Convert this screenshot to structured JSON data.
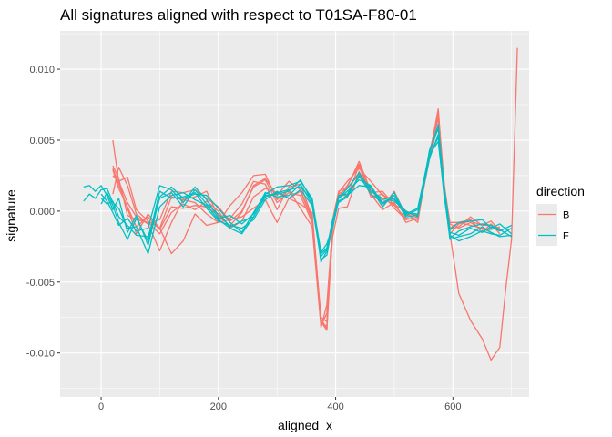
{
  "chart_data": {
    "type": "line",
    "title": "All signatures aligned with respect to T01SA-F80-01",
    "xlabel": "aligned_x",
    "ylabel": "signature",
    "xlim": [
      -70,
      730
    ],
    "ylim": [
      -0.0131,
      0.0127
    ],
    "x_ticks": [
      0,
      200,
      400,
      600
    ],
    "x_tick_labels": [
      "0",
      "200",
      "400",
      "600"
    ],
    "y_ticks": [
      -0.01,
      -0.005,
      0.0,
      0.005,
      0.01
    ],
    "y_tick_labels": [
      "-0.010",
      "-0.005",
      "0.000",
      "0.005",
      "0.010"
    ],
    "legend": {
      "title": "direction",
      "position": "right",
      "entries": [
        {
          "name": "B",
          "color": "#F8766D"
        },
        {
          "name": "F",
          "color": "#00BFC4"
        }
      ]
    },
    "grid": true,
    "panel_background": "#EBEBEB",
    "series": [
      {
        "direction": "B",
        "color": "#F8766D",
        "x": [
          20,
          30,
          45,
          60,
          80,
          100,
          120,
          140,
          160,
          180,
          200,
          220,
          240,
          260,
          280,
          300,
          320,
          340,
          360,
          375,
          385,
          395,
          405,
          420,
          440,
          460,
          480,
          500,
          520,
          540,
          560,
          575,
          585,
          595,
          610,
          630,
          650,
          665,
          680,
          690,
          700,
          710
        ],
        "values": [
          0.0012,
          0.0031,
          0.0018,
          -0.0002,
          -0.0009,
          -0.0028,
          -0.0008,
          0.0008,
          0.0006,
          -0.0002,
          -0.0008,
          -0.0006,
          -0.0004,
          0.0002,
          0.0008,
          -0.0008,
          0.0009,
          0.0014,
          -0.0006,
          -0.0081,
          -0.0072,
          -0.0018,
          0.0002,
          0.0003,
          0.0028,
          0.0012,
          0.0001,
          0.0006,
          -0.0008,
          -0.0005,
          0.0037,
          0.0061,
          0.0012,
          -0.0016,
          -0.0058,
          -0.0077,
          -0.009,
          -0.0105,
          -0.0096,
          -0.0055,
          -0.002,
          0.0115
        ]
      },
      {
        "direction": "B",
        "color": "#F8766D",
        "x": [
          20,
          30,
          45,
          60,
          80,
          100,
          120,
          140,
          160,
          180,
          200,
          220,
          240,
          260,
          280,
          300,
          320,
          340,
          360,
          375,
          385,
          395,
          405,
          420,
          440,
          460,
          480,
          500,
          520,
          540,
          560,
          575,
          585,
          595,
          610,
          630,
          650,
          665,
          680
        ],
        "values": [
          0.005,
          0.0021,
          0.0024,
          0.0001,
          -0.0007,
          -0.0012,
          -0.003,
          -0.0021,
          -0.0002,
          -0.001,
          -0.0008,
          0.0004,
          0.0013,
          0.0025,
          0.0026,
          0.0008,
          0.0015,
          0.0002,
          -0.0011,
          -0.0082,
          -0.0066,
          -0.001,
          0.0011,
          0.0011,
          0.0032,
          0.001,
          0.0012,
          0.0002,
          -0.0006,
          -0.0004,
          0.0039,
          0.0072,
          0.0015,
          -0.0008,
          -0.0008,
          -0.001,
          -0.0012,
          -0.0015,
          -0.0018
        ]
      },
      {
        "direction": "B",
        "color": "#F8766D",
        "x": [
          20,
          30,
          45,
          60,
          80,
          100,
          120,
          140,
          160,
          180,
          200,
          220,
          240,
          260,
          280,
          300,
          320,
          340,
          360,
          375,
          385,
          395,
          405,
          420,
          440,
          460,
          480,
          500,
          520,
          540,
          560,
          575,
          585,
          595,
          610,
          630,
          650,
          665,
          680
        ],
        "values": [
          0.0029,
          0.0016,
          0.0003,
          -0.0011,
          -0.0004,
          -0.0013,
          0.0003,
          0.0002,
          0.0004,
          0.0003,
          -0.0003,
          -0.0005,
          0.0005,
          0.0021,
          0.0019,
          0.0001,
          0.0017,
          0.0019,
          -0.0004,
          -0.0075,
          -0.0078,
          -0.0008,
          0.001,
          0.0018,
          0.0033,
          0.0013,
          0.0014,
          0.0004,
          -0.0005,
          -0.0006,
          0.0038,
          0.0069,
          0.0014,
          -0.0013,
          -0.0011,
          -0.0004,
          -0.001,
          -0.0007,
          -0.0014
        ]
      },
      {
        "direction": "B",
        "color": "#F8766D",
        "x": [
          20,
          30,
          45,
          60,
          80,
          100,
          120,
          140,
          160,
          180,
          200,
          220,
          240,
          260,
          280,
          300,
          320,
          340,
          360,
          375,
          385,
          395,
          405,
          420,
          440,
          460,
          480,
          500,
          520,
          540,
          560,
          575,
          585,
          595,
          610,
          630,
          650,
          665,
          680
        ],
        "values": [
          0.0032,
          0.0023,
          -0.0003,
          -0.0006,
          -0.0008,
          -0.0016,
          -0.0001,
          0.0005,
          0.0001,
          0.0007,
          0.0,
          -0.0012,
          -0.0007,
          0.001,
          0.0016,
          0.0013,
          0.0009,
          0.0005,
          -0.0001,
          -0.0078,
          -0.0084,
          -0.0013,
          0.0012,
          0.0016,
          0.0026,
          0.0016,
          0.0003,
          0.0014,
          -0.0003,
          -0.0002,
          0.0037,
          0.0071,
          0.0019,
          -0.0009,
          -0.0012,
          -0.0008,
          -0.0013,
          -0.0013,
          -0.0011
        ]
      },
      {
        "direction": "B",
        "color": "#F8766D",
        "x": [
          20,
          30,
          45,
          60,
          80,
          100,
          120,
          140,
          160,
          180,
          200,
          220,
          240,
          260,
          280,
          300,
          320,
          340,
          360,
          375,
          385,
          395,
          405,
          420,
          440,
          460,
          480,
          500,
          520,
          540,
          560,
          575,
          585,
          595,
          610,
          630,
          650,
          665,
          680
        ],
        "values": [
          0.003,
          0.0019,
          0.0002,
          -0.0016,
          -0.0002,
          -0.0012,
          0.001,
          0.0008,
          0.001,
          0.0014,
          -0.0004,
          -0.001,
          -0.0001,
          0.0018,
          0.0023,
          0.0011,
          0.0021,
          0.0015,
          -0.0005,
          -0.0079,
          -0.0081,
          -0.0006,
          0.0013,
          0.0021,
          0.003,
          0.0021,
          0.0011,
          0.0008,
          0.0,
          -0.0003,
          0.004,
          0.0067,
          0.0016,
          -0.0012,
          -0.0008,
          -0.0006,
          -0.0015,
          -0.0009,
          -0.0016
        ]
      },
      {
        "direction": "B",
        "color": "#F8766D",
        "x": [
          20,
          30,
          45,
          60,
          80,
          100,
          120,
          140,
          160,
          180,
          200,
          220,
          240,
          260,
          280,
          300,
          320,
          340,
          360,
          375,
          385,
          395,
          405,
          420,
          440,
          460,
          480,
          500,
          520,
          540,
          560,
          575,
          585,
          595,
          610,
          630,
          650,
          665,
          680
        ],
        "values": [
          0.0025,
          0.0021,
          0.0006,
          -0.0004,
          -0.0009,
          -0.0006,
          0.0014,
          0.0013,
          0.0015,
          0.0009,
          0.0003,
          -0.0007,
          0.0,
          0.0017,
          0.0022,
          0.0006,
          0.0013,
          0.0011,
          -0.0008,
          -0.0076,
          -0.0083,
          -0.0006,
          0.0014,
          0.0017,
          0.0035,
          0.0014,
          0.0008,
          0.0005,
          -0.0001,
          -0.0008,
          0.0042,
          0.0065,
          0.002,
          -0.0016,
          -0.0009,
          -0.0007,
          -0.001,
          -0.001,
          -0.0012
        ]
      },
      {
        "direction": "F",
        "color": "#00BFC4",
        "x": [
          -30,
          -20,
          -10,
          0,
          10,
          20,
          30,
          45,
          60,
          80,
          100,
          120,
          140,
          160,
          180,
          200,
          220,
          240,
          260,
          280,
          300,
          320,
          340,
          360,
          375,
          385,
          395,
          405,
          420,
          440,
          460,
          480,
          500,
          520,
          540,
          560,
          575,
          585,
          595,
          610,
          630,
          650,
          665,
          680,
          700
        ],
        "values": [
          0.0017,
          0.0018,
          0.0014,
          0.0018,
          0.0011,
          0.0001,
          0.0009,
          -0.0015,
          -0.0003,
          -0.0024,
          0.001,
          0.0017,
          0.0009,
          0.0012,
          0.0011,
          0.0002,
          -0.0008,
          -0.0015,
          -0.0001,
          0.0012,
          0.0017,
          0.0018,
          0.0021,
          0.0009,
          -0.0036,
          -0.0028,
          -0.0012,
          0.0009,
          0.0014,
          0.0022,
          0.0018,
          0.0005,
          0.0011,
          -0.0002,
          0.0002,
          0.0041,
          0.0061,
          0.0013,
          -0.0019,
          -0.0014,
          -0.0011,
          -0.0009,
          -0.001,
          -0.0013,
          -0.0018
        ]
      },
      {
        "direction": "F",
        "color": "#00BFC4",
        "x": [
          -30,
          -20,
          -10,
          0,
          10,
          20,
          30,
          45,
          60,
          80,
          100,
          120,
          140,
          160,
          180,
          200,
          220,
          240,
          260,
          280,
          300,
          320,
          340,
          360,
          375,
          385,
          395,
          405,
          420,
          440,
          460,
          480,
          500,
          520,
          540,
          560,
          575,
          585,
          595,
          610,
          630,
          650,
          665,
          680,
          700
        ],
        "values": [
          0.0007,
          0.0012,
          0.0009,
          0.0015,
          0.0016,
          0.0006,
          0.0002,
          -0.0012,
          -0.0011,
          -0.003,
          0.0003,
          0.0011,
          0.0013,
          0.0008,
          0.0004,
          -0.0006,
          -0.0012,
          -0.0016,
          -0.0004,
          0.001,
          0.0013,
          0.0015,
          0.0017,
          0.0008,
          -0.0029,
          -0.0023,
          -0.0011,
          0.0007,
          0.0011,
          0.0018,
          0.0017,
          0.0006,
          0.0009,
          -0.0004,
          -0.0003,
          0.0037,
          0.0054,
          0.0013,
          -0.0017,
          -0.0021,
          -0.0018,
          -0.0014,
          -0.0016,
          -0.0017,
          -0.0012
        ]
      },
      {
        "direction": "F",
        "color": "#00BFC4",
        "x": [
          0,
          10,
          20,
          30,
          45,
          60,
          80,
          100,
          120,
          140,
          160,
          180,
          200,
          220,
          240,
          260,
          280,
          300,
          320,
          340,
          360,
          375,
          385,
          395,
          405,
          420,
          440,
          460,
          480,
          500,
          520,
          540,
          560,
          575,
          585,
          595,
          610,
          630,
          650,
          665,
          680,
          700
        ],
        "values": [
          0.0012,
          0.0007,
          -0.0001,
          -0.001,
          -0.0005,
          -0.0014,
          -0.0012,
          0.0018,
          0.0015,
          0.0006,
          0.0017,
          0.0008,
          -0.0005,
          -0.0003,
          -0.0009,
          -0.0002,
          0.0013,
          0.001,
          0.0011,
          0.0019,
          0.0005,
          -0.0032,
          -0.0027,
          -0.0007,
          0.0009,
          0.0016,
          0.0027,
          0.0014,
          0.0009,
          0.0007,
          0.0,
          -0.0004,
          0.0043,
          0.0058,
          0.0017,
          -0.0013,
          -0.0008,
          -0.0007,
          -0.0006,
          -0.0012,
          -0.0009,
          -0.0016
        ]
      },
      {
        "direction": "F",
        "color": "#00BFC4",
        "x": [
          0,
          10,
          20,
          30,
          45,
          60,
          80,
          100,
          120,
          140,
          160,
          180,
          200,
          220,
          240,
          260,
          280,
          300,
          320,
          340,
          360,
          375,
          385,
          395,
          405,
          420,
          440,
          460,
          480,
          500,
          520,
          540,
          560,
          575,
          585,
          595,
          610,
          630,
          650,
          665,
          680,
          700
        ],
        "values": [
          0.0005,
          0.0013,
          0.0004,
          -0.0008,
          -0.002,
          -0.0005,
          -0.0021,
          0.0014,
          0.0009,
          0.001,
          0.0013,
          0.0002,
          -0.0007,
          -0.001,
          -0.0012,
          -0.0006,
          0.0008,
          0.0014,
          0.0009,
          0.0015,
          0.0004,
          -0.0034,
          -0.0031,
          -0.0009,
          0.0011,
          0.0012,
          0.0024,
          0.0017,
          0.0003,
          0.0013,
          -0.0003,
          0.0001,
          0.0039,
          0.0052,
          0.001,
          -0.0015,
          -0.0017,
          -0.0012,
          -0.0015,
          -0.0011,
          -0.0014,
          -0.001
        ]
      },
      {
        "direction": "F",
        "color": "#00BFC4",
        "x": [
          0,
          10,
          20,
          30,
          45,
          60,
          80,
          100,
          120,
          140,
          160,
          180,
          200,
          220,
          240,
          260,
          280,
          300,
          320,
          340,
          360,
          375,
          385,
          395,
          405,
          420,
          440,
          460,
          480,
          500,
          520,
          540,
          560,
          575,
          585,
          595,
          610,
          630,
          650,
          665,
          680,
          700
        ],
        "values": [
          0.0009,
          0.0005,
          0.0007,
          -0.0004,
          -0.001,
          -0.0017,
          -0.0018,
          0.0009,
          0.0013,
          0.0003,
          0.0015,
          0.0005,
          -0.0002,
          -0.0011,
          -0.0007,
          -0.0004,
          0.0011,
          0.0012,
          0.0014,
          0.0022,
          0.0007,
          -0.003,
          -0.0026,
          -0.0006,
          0.0006,
          0.001,
          0.0025,
          0.0012,
          0.0006,
          0.0009,
          -0.0001,
          -0.0002,
          0.004,
          0.0049,
          0.0012,
          -0.002,
          -0.0018,
          -0.0016,
          -0.0011,
          -0.0015,
          -0.0018,
          -0.0017
        ]
      }
    ]
  }
}
